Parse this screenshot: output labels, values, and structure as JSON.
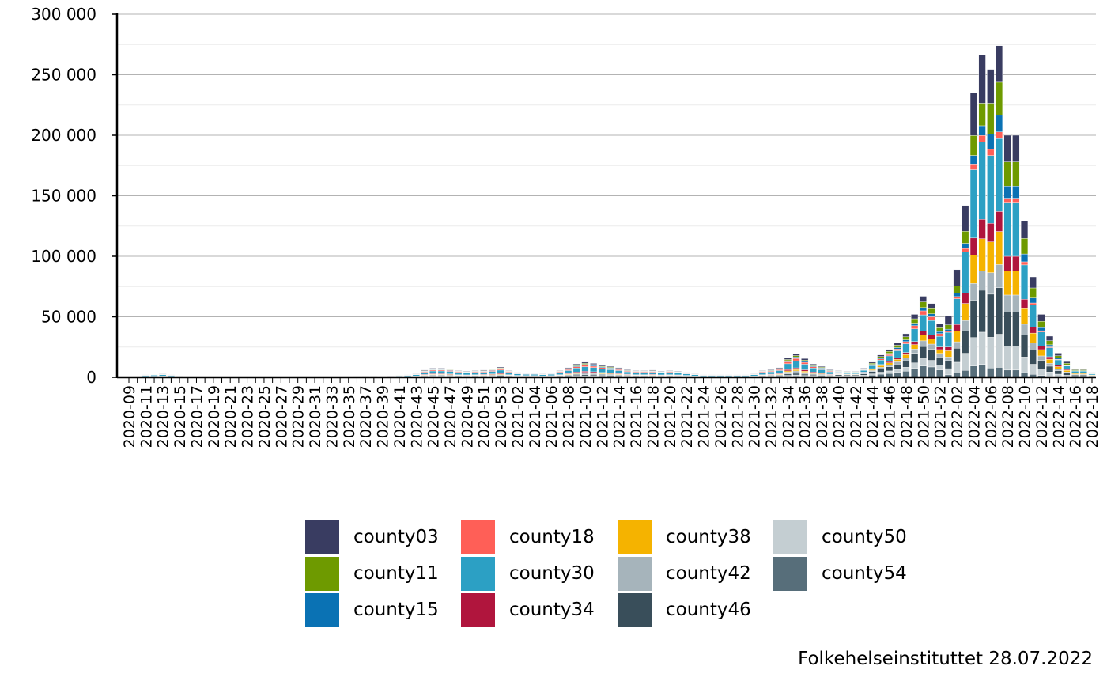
{
  "chart_data": {
    "type": "bar",
    "stacked": true,
    "title": "",
    "xlabel": "",
    "ylabel": "",
    "ylim": [
      0,
      300000
    ],
    "yticks": [
      0,
      50000,
      100000,
      150000,
      200000,
      250000,
      300000
    ],
    "ytick_labels": [
      "0",
      "50 000",
      "100 000",
      "150 000",
      "200 000",
      "250 000",
      "300 000"
    ],
    "grid": "horizontal",
    "legend_position": "bottom",
    "caption": "Folkehelseinstituttet 28.07.2022",
    "categories": [
      "2020-09",
      "2020-10",
      "2020-11",
      "2020-12",
      "2020-13",
      "2020-14",
      "2020-15",
      "2020-16",
      "2020-17",
      "2020-18",
      "2020-19",
      "2020-20",
      "2020-21",
      "2020-22",
      "2020-23",
      "2020-24",
      "2020-25",
      "2020-26",
      "2020-27",
      "2020-28",
      "2020-29",
      "2020-30",
      "2020-31",
      "2020-32",
      "2020-33",
      "2020-34",
      "2020-35",
      "2020-36",
      "2020-37",
      "2020-38",
      "2020-39",
      "2020-40",
      "2020-41",
      "2020-42",
      "2020-43",
      "2020-44",
      "2020-45",
      "2020-46",
      "2020-47",
      "2020-48",
      "2020-49",
      "2020-50",
      "2020-51",
      "2020-52",
      "2020-53",
      "2021-01",
      "2021-02",
      "2021-03",
      "2021-04",
      "2021-05",
      "2021-06",
      "2021-07",
      "2021-08",
      "2021-09",
      "2021-10",
      "2021-11",
      "2021-12",
      "2021-13",
      "2021-14",
      "2021-15",
      "2021-16",
      "2021-17",
      "2021-18",
      "2021-19",
      "2021-20",
      "2021-21",
      "2021-22",
      "2021-23",
      "2021-24",
      "2021-25",
      "2021-26",
      "2021-27",
      "2021-28",
      "2021-29",
      "2021-30",
      "2021-31",
      "2021-32",
      "2021-33",
      "2021-34",
      "2021-35",
      "2021-36",
      "2021-37",
      "2021-38",
      "2021-39",
      "2021-40",
      "2021-41",
      "2021-42",
      "2021-43",
      "2021-44",
      "2021-45",
      "2021-46",
      "2021-47",
      "2021-48",
      "2021-49",
      "2021-50",
      "2021-51",
      "2021-52",
      "2022-01",
      "2022-02",
      "2022-03",
      "2022-04",
      "2022-05",
      "2022-06",
      "2022-07",
      "2022-08",
      "2022-09",
      "2022-10",
      "2022-11",
      "2022-12",
      "2022-13",
      "2022-14",
      "2022-15",
      "2022-16",
      "2022-17",
      "2022-18"
    ],
    "totals": [
      0,
      0,
      2000,
      2500,
      3000,
      2000,
      1000,
      500,
      300,
      200,
      100,
      100,
      100,
      100,
      100,
      100,
      100,
      100,
      200,
      200,
      200,
      300,
      300,
      400,
      300,
      300,
      500,
      700,
      1000,
      1000,
      1200,
      1300,
      1800,
      2000,
      3000,
      6000,
      7500,
      7500,
      7000,
      5500,
      5000,
      5500,
      6000,
      7000,
      8500,
      5500,
      4000,
      3500,
      3500,
      3000,
      3500,
      5500,
      8000,
      11000,
      12500,
      11500,
      10000,
      9000,
      8000,
      6500,
      5500,
      5500,
      6000,
      5000,
      5500,
      5000,
      4000,
      3000,
      2000,
      2000,
      2000,
      2000,
      2000,
      2000,
      3000,
      5500,
      6500,
      8000,
      16000,
      19500,
      15500,
      11000,
      9000,
      6500,
      5500,
      5000,
      5000,
      7500,
      12500,
      18500,
      23000,
      28500,
      36000,
      52000,
      67000,
      61000,
      44000,
      51000,
      89000,
      142000,
      235000,
      266500,
      254500,
      274000,
      200000,
      200000,
      129000,
      83000,
      52000,
      34000,
      20000,
      13000,
      7000,
      7000,
      4000
    ],
    "share_phases": [
      {
        "from": "2020-09",
        "shares": [
          0.08,
          0.06,
          0.06,
          0.1,
          0.3,
          0.07,
          0.06,
          0.1,
          0.07,
          0.1,
          0.0
        ]
      },
      {
        "from": "2021-40",
        "shares": [
          0.07,
          0.07,
          0.04,
          0.05,
          0.2,
          0.05,
          0.07,
          0.07,
          0.15,
          0.09,
          0.14
        ]
      },
      {
        "from": "2022-01",
        "shares": [
          0.15,
          0.07,
          0.03,
          0.02,
          0.24,
          0.06,
          0.1,
          0.06,
          0.13,
          0.1,
          0.04
        ]
      },
      {
        "from": "2022-06",
        "shares": [
          0.11,
          0.1,
          0.05,
          0.02,
          0.22,
          0.06,
          0.1,
          0.07,
          0.14,
          0.1,
          0.03
        ]
      }
    ],
    "series": [
      {
        "name": "county03",
        "color": "#393c61"
      },
      {
        "name": "county11",
        "color": "#6e9a00"
      },
      {
        "name": "county15",
        "color": "#0a72b4"
      },
      {
        "name": "county18",
        "color": "#ff5f57"
      },
      {
        "name": "county30",
        "color": "#2ca0c4"
      },
      {
        "name": "county34",
        "color": "#b0153d"
      },
      {
        "name": "county38",
        "color": "#f5b300"
      },
      {
        "name": "county42",
        "color": "#a6b4bb"
      },
      {
        "name": "county46",
        "color": "#394e5a"
      },
      {
        "name": "county50",
        "color": "#c4ced2"
      },
      {
        "name": "county54",
        "color": "#576e7a"
      }
    ]
  }
}
